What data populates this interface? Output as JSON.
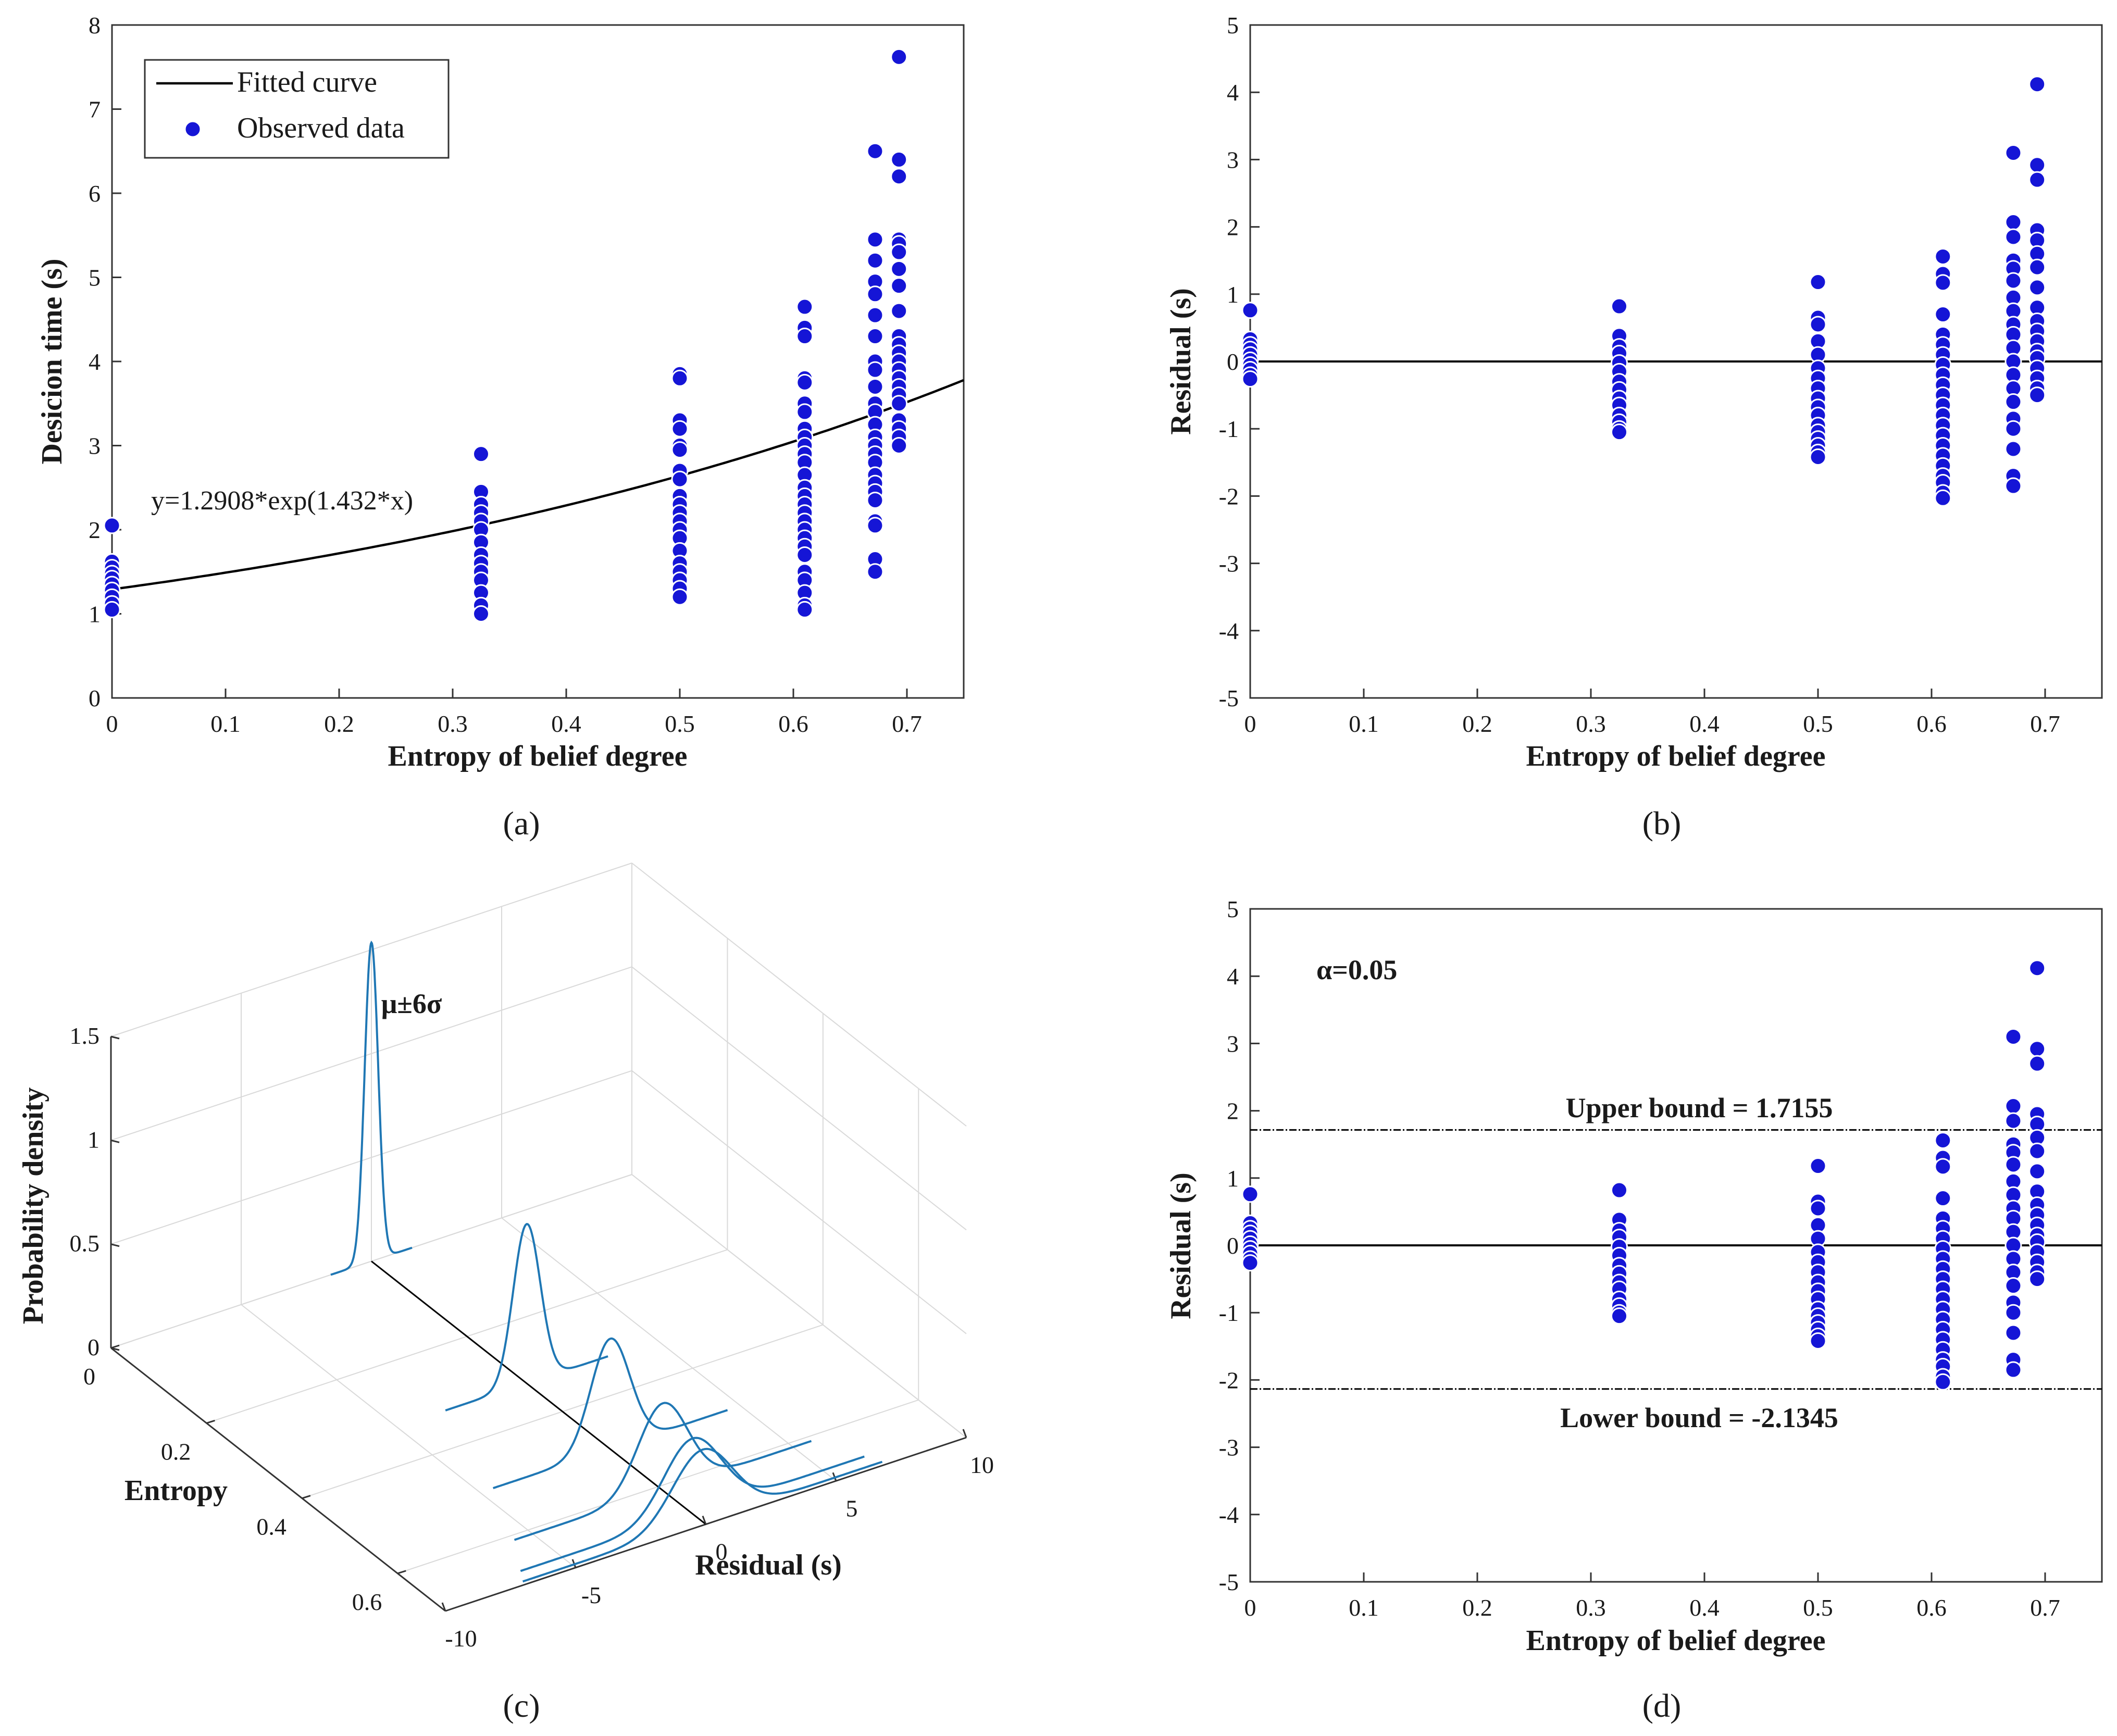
{
  "figure": {
    "panel_labels": [
      "(a)",
      "(b)",
      "(c)",
      "(d)"
    ]
  },
  "colors": {
    "points": "#1515d6",
    "curve": "#000000",
    "density": "#1f77b4",
    "axis": "#333333",
    "grid": "#d9d9d9"
  },
  "chart_data": [
    {
      "id": "a",
      "type": "scatter",
      "title": "",
      "xlabel": "Entropy of belief degree",
      "ylabel": "Desicion time (s)",
      "xlim": [
        0,
        0.75
      ],
      "ylim": [
        0,
        8
      ],
      "xticks": [
        "0",
        "0.1",
        "0.2",
        "0.3",
        "0.4",
        "0.5",
        "0.6",
        "0.7"
      ],
      "yticks": [
        "0",
        "1",
        "2",
        "3",
        "4",
        "5",
        "6",
        "7",
        "8"
      ],
      "legend": {
        "placement": "top-left",
        "entries": [
          "Fitted curve",
          "Observed data"
        ]
      },
      "fit": {
        "equation": "y=1.2908*exp(1.432*x)",
        "a": 1.2908,
        "b": 1.432
      },
      "series": [
        {
          "x": 0,
          "y": [
            2.05,
            1.62,
            1.55,
            1.48,
            1.42,
            1.35,
            1.28,
            1.2,
            1.12,
            1.05
          ]
        },
        {
          "x": 0.325,
          "y": [
            2.9,
            2.45,
            2.3,
            2.2,
            2.1,
            2.0,
            1.85,
            1.7,
            1.6,
            1.5,
            1.4,
            1.25,
            1.1,
            1.0
          ]
        },
        {
          "x": 0.5,
          "y": [
            3.85,
            3.8,
            3.3,
            3.2,
            3.0,
            2.95,
            2.7,
            2.6,
            2.4,
            2.3,
            2.2,
            2.1,
            2.0,
            1.9,
            1.75,
            1.6,
            1.5,
            1.4,
            1.3,
            1.2
          ]
        },
        {
          "x": 0.61,
          "y": [
            4.65,
            4.4,
            4.3,
            3.8,
            3.75,
            3.5,
            3.4,
            3.2,
            3.1,
            3.0,
            2.9,
            2.8,
            2.65,
            2.5,
            2.4,
            2.3,
            2.2,
            2.1,
            2.0,
            1.9,
            1.8,
            1.7,
            1.5,
            1.4,
            1.25,
            1.1,
            1.05
          ]
        },
        {
          "x": 0.672,
          "y": [
            6.5,
            5.45,
            5.2,
            4.95,
            4.8,
            4.55,
            4.3,
            4.0,
            3.9,
            3.7,
            3.5,
            3.4,
            3.25,
            3.1,
            3.0,
            2.9,
            2.8,
            2.65,
            2.55,
            2.45,
            2.35,
            2.1,
            2.05,
            1.65,
            1.5
          ]
        },
        {
          "x": 0.693,
          "y": [
            7.62,
            6.4,
            6.2,
            5.45,
            5.4,
            5.3,
            5.1,
            4.9,
            4.6,
            4.3,
            4.2,
            4.1,
            4.0,
            3.9,
            3.8,
            3.7,
            3.6,
            3.5,
            3.3,
            3.2,
            3.1,
            3.0
          ]
        }
      ]
    },
    {
      "id": "b",
      "type": "scatter",
      "title": "",
      "xlabel": "Entropy of belief degree",
      "ylabel": "Residual (s)",
      "xlim": [
        0,
        0.75
      ],
      "ylim": [
        -5,
        5
      ],
      "xticks": [
        "0",
        "0.1",
        "0.2",
        "0.3",
        "0.4",
        "0.5",
        "0.6",
        "0.7"
      ],
      "yticks": [
        "-5",
        "-4",
        "-3",
        "-2",
        "-1",
        "0",
        "1",
        "2",
        "3",
        "4",
        "5"
      ],
      "zero_line": 0,
      "series": [
        {
          "x": 0,
          "y": [
            0.76,
            0.33,
            0.25,
            0.18,
            0.1,
            0.02,
            -0.05,
            -0.12,
            -0.2,
            -0.26
          ]
        },
        {
          "x": 0.325,
          "y": [
            0.82,
            0.38,
            0.22,
            0.12,
            -0.02,
            -0.15,
            -0.3,
            -0.42,
            -0.55,
            -0.65,
            -0.8,
            -0.9,
            -1.0,
            -1.05
          ]
        },
        {
          "x": 0.5,
          "y": [
            1.18,
            0.65,
            0.55,
            0.3,
            0.1,
            -0.1,
            -0.25,
            -0.4,
            -0.55,
            -0.68,
            -0.8,
            -0.95,
            -1.05,
            -1.15,
            -1.25,
            -1.35,
            -1.42
          ]
        },
        {
          "x": 0.61,
          "y": [
            1.56,
            1.3,
            1.17,
            0.7,
            0.4,
            0.25,
            0.1,
            -0.05,
            -0.2,
            -0.35,
            -0.5,
            -0.65,
            -0.8,
            -0.95,
            -1.1,
            -1.25,
            -1.4,
            -1.55,
            -1.7,
            -1.8,
            -1.95,
            -2.03
          ]
        },
        {
          "x": 0.672,
          "y": [
            3.1,
            2.07,
            1.85,
            1.5,
            1.38,
            1.2,
            0.95,
            0.75,
            0.55,
            0.4,
            0.2,
            0.0,
            -0.2,
            -0.4,
            -0.6,
            -0.85,
            -1.0,
            -1.3,
            -1.7,
            -1.85
          ]
        },
        {
          "x": 0.693,
          "y": [
            4.12,
            2.92,
            2.7,
            1.95,
            1.8,
            1.6,
            1.4,
            1.1,
            0.8,
            0.6,
            0.45,
            0.3,
            0.15,
            0.05,
            -0.1,
            -0.25,
            -0.4,
            -0.5
          ]
        }
      ]
    },
    {
      "id": "c",
      "type": "line",
      "title": "",
      "xlabel": "Residual (s)",
      "ylabel": "Entropy",
      "zlabel": "Probability density",
      "xlim": [
        -10,
        10
      ],
      "ylim": [
        0,
        0.7
      ],
      "zlim": [
        0,
        1.5
      ],
      "xticks": [
        "-10",
        "-5",
        "0",
        "5",
        "10"
      ],
      "yticks": [
        "0",
        "0.2",
        "0.4",
        "0.6"
      ],
      "zticks": [
        "0",
        "0.5",
        "1",
        "1.5"
      ],
      "annotation": "μ±6σ",
      "series": [
        {
          "entropy": 0,
          "mu": 0,
          "sigma": 0.26
        },
        {
          "entropy": 0.325,
          "mu": 0,
          "sigma": 0.52
        },
        {
          "entropy": 0.5,
          "mu": 0,
          "sigma": 0.75
        },
        {
          "entropy": 0.61,
          "mu": 0,
          "sigma": 0.95
        },
        {
          "entropy": 0.672,
          "mu": 0,
          "sigma": 1.1
        },
        {
          "entropy": 0.693,
          "mu": 0,
          "sigma": 1.15
        }
      ]
    },
    {
      "id": "d",
      "type": "scatter",
      "title": "",
      "xlabel": "Entropy of belief degree",
      "ylabel": "Residual (s)",
      "xlim": [
        0,
        0.75
      ],
      "ylim": [
        -5,
        5
      ],
      "xticks": [
        "0",
        "0.1",
        "0.2",
        "0.3",
        "0.4",
        "0.5",
        "0.6",
        "0.7"
      ],
      "yticks": [
        "-5",
        "-4",
        "-3",
        "-2",
        "-1",
        "0",
        "1",
        "2",
        "3",
        "4",
        "5"
      ],
      "alpha_label": "α=0.05",
      "upper_bound": {
        "value": 1.7155,
        "label": "Upper bound = 1.7155"
      },
      "lower_bound": {
        "value": -2.1345,
        "label": "Lower bound = -2.1345"
      },
      "zero_line": 0,
      "series_ref": "b"
    }
  ]
}
